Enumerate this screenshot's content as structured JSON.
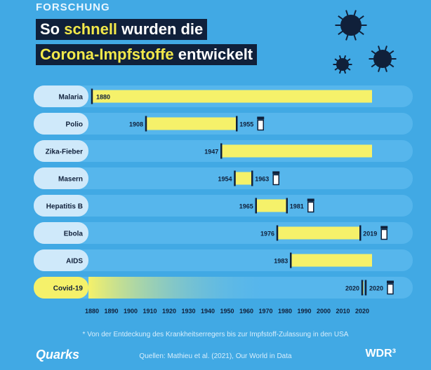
{
  "header": {
    "kicker": "FORSCHUNG",
    "title_line1_a": "So ",
    "title_line1_b": "schnell",
    "title_line1_c": " wurden die",
    "title_line2_a": "Corona-Impfstoffe",
    "title_line2_b": " entwickelt"
  },
  "footer": {
    "note": "* Von der Entdeckung des Krankheitserregers bis zur Impfstoff-Zulassung in den USA",
    "source": "Quellen: Mathieu et al. (2021), Our World in Data",
    "brand_left": "Quarks",
    "brand_right": "WDR³"
  },
  "colors": {
    "bar": "#f5f16a",
    "row": "#56b6ec",
    "label": "#cfe9fa",
    "axis": "#10203a"
  },
  "chart_data": {
    "type": "bar",
    "subtype": "floating-range",
    "xlim": [
      1880,
      2020
    ],
    "xticks": [
      1880,
      1890,
      1900,
      1910,
      1920,
      1930,
      1940,
      1950,
      1960,
      1970,
      1980,
      1990,
      2000,
      2010,
      2020
    ],
    "categories": [
      "Malaria",
      "Polio",
      "Zika-Fieber",
      "Masern",
      "Hepatitis B",
      "Ebola",
      "AIDS",
      "Covid-19"
    ],
    "ranges": [
      {
        "start": 1880,
        "end": null,
        "start_label": "1880",
        "end_label": ""
      },
      {
        "start": 1908,
        "end": 1955,
        "start_label": "1908",
        "end_label": "1955"
      },
      {
        "start": 1947,
        "end": null,
        "start_label": "1947",
        "end_label": ""
      },
      {
        "start": 1954,
        "end": 1963,
        "start_label": "1954",
        "end_label": "1963"
      },
      {
        "start": 1965,
        "end": 1981,
        "start_label": "1965",
        "end_label": "1981"
      },
      {
        "start": 1976,
        "end": 2019,
        "start_label": "1976",
        "end_label": "2019"
      },
      {
        "start": 1983,
        "end": null,
        "start_label": "1983",
        "end_label": ""
      },
      {
        "start": 2020,
        "end": 2020,
        "start_label": "2020",
        "end_label": "2020"
      }
    ]
  }
}
